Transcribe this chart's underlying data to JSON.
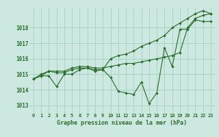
{
  "bg_color": "#cce8e0",
  "grid_color": "#99ccbb",
  "line_color": "#2d6e2d",
  "xlabel": "Graphe pression niveau de la mer (hPa)",
  "x_ticks": [
    0,
    1,
    2,
    3,
    4,
    5,
    6,
    7,
    8,
    9,
    10,
    11,
    12,
    13,
    14,
    15,
    16,
    17,
    18,
    19,
    20,
    21,
    22,
    23
  ],
  "ylim": [
    1012.5,
    1019.3
  ],
  "yticks": [
    1013,
    1014,
    1015,
    1016,
    1017,
    1018
  ],
  "series": [
    [
      1014.7,
      1014.9,
      1014.9,
      1014.2,
      1015.0,
      1015.0,
      1015.3,
      1015.4,
      1015.2,
      1015.3,
      1014.8,
      1013.9,
      1013.8,
      1013.7,
      1014.5,
      1013.1,
      1013.8,
      1016.7,
      1015.5,
      1017.9,
      1017.9,
      1018.5,
      1018.4,
      1018.4
    ],
    [
      1014.7,
      1014.9,
      1015.2,
      1015.1,
      1015.1,
      1015.3,
      1015.4,
      1015.4,
      1015.3,
      1015.3,
      1016.0,
      1016.2,
      1016.3,
      1016.5,
      1016.8,
      1017.0,
      1017.2,
      1017.5,
      1018.0,
      1018.3,
      1018.6,
      1018.9,
      1019.1,
      1018.9
    ],
    [
      1014.7,
      1015.0,
      1015.2,
      1015.2,
      1015.2,
      1015.4,
      1015.5,
      1015.5,
      1015.4,
      1015.4,
      1015.5,
      1015.6,
      1015.7,
      1015.7,
      1015.8,
      1015.9,
      1016.0,
      1016.1,
      1016.2,
      1016.4,
      1018.0,
      1018.6,
      1018.8,
      1018.9
    ]
  ]
}
